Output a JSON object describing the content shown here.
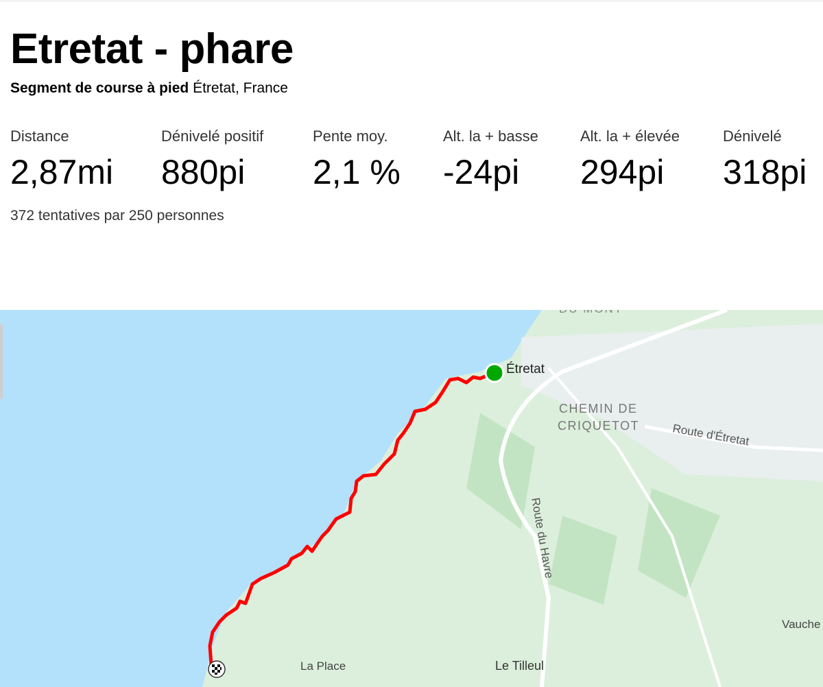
{
  "segment": {
    "title": "Etretat - phare",
    "type": "Segment de course à pied",
    "location": "Étretat, France",
    "attempts": "372 tentatives par 250 personnes"
  },
  "stats": [
    {
      "label": "Distance",
      "value": "2,87mi"
    },
    {
      "label": "Dénivelé positif",
      "value": "880pi"
    },
    {
      "label": "Pente moy.",
      "value": "2,1 %"
    },
    {
      "label": "Alt. la + basse",
      "value": "-24pi"
    },
    {
      "label": "Alt. la + élevée",
      "value": "294pi"
    },
    {
      "label": "Dénivelé",
      "value": "318pi"
    }
  ],
  "map": {
    "labels": {
      "du_mont": "DU MONT",
      "etretat": "Étretat",
      "chemin1": "CHEMIN DE",
      "chemin2": "CRIQUETOT",
      "route_etretat": "Route d'Étretat",
      "route_havre": "Route du Havre",
      "la_place": "La Place",
      "le_tilleul": "Le Tilleul",
      "vauche": "Vauche"
    },
    "colors": {
      "route": "#ff0000",
      "start": "#00a800",
      "sea": "#b3e0fb",
      "land": "#d9efd9"
    },
    "start_icon": "green-circle-icon",
    "finish_icon": "checkered-flag-icon"
  }
}
